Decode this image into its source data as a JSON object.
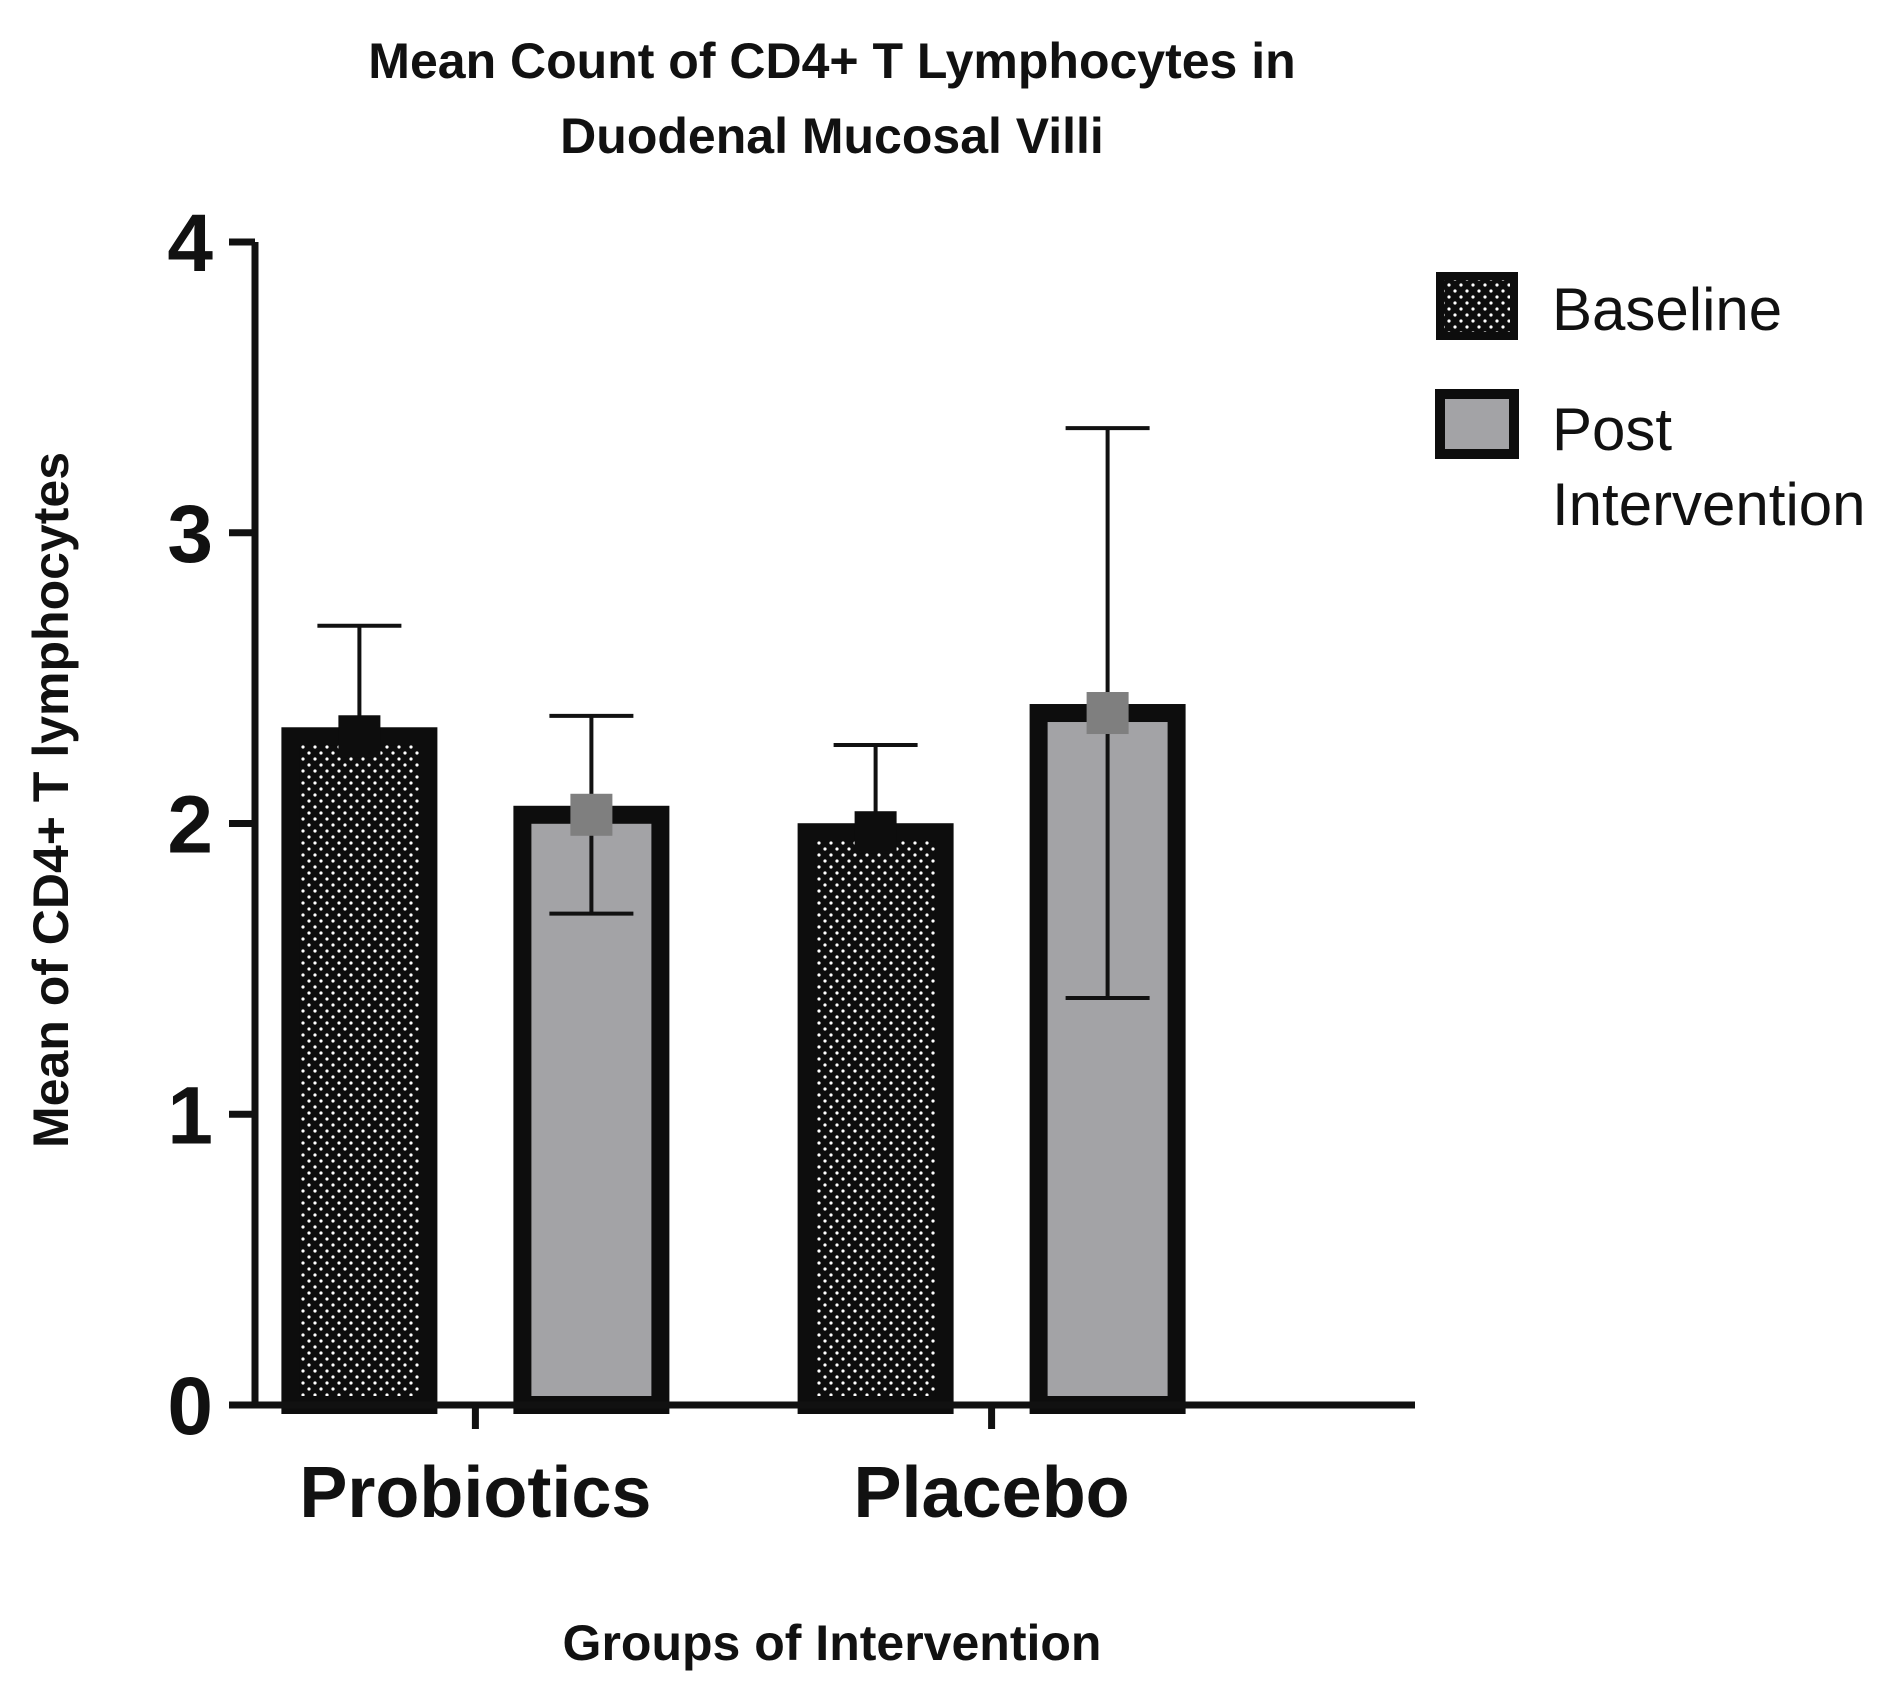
{
  "chart_data": {
    "type": "bar",
    "title": [
      "Mean Count of CD4+ T Lymphocytes in",
      "Duodenal Mucosal Villi"
    ],
    "xlabel": "Groups of Intervention",
    "ylabel": "Mean of CD4+ T lymphocytes",
    "categories": [
      "Probiotics",
      "Placebo"
    ],
    "ylim": [
      0,
      4
    ],
    "yticks": [
      "0",
      "1",
      "2",
      "3",
      "4"
    ],
    "series": [
      {
        "name": "Baseline",
        "values": [
          2.3,
          1.97
        ],
        "error": [
          0.38,
          0.3
        ],
        "fill": "#0d0d0d",
        "pattern": "dots"
      },
      {
        "name": "Post Intervention",
        "legend_lines": [
          "Post",
          "Intervention"
        ],
        "values": [
          2.03,
          2.38
        ],
        "error": [
          0.34,
          0.98
        ],
        "fill": "#a3a3a6",
        "pattern": "none"
      }
    ],
    "legend_position": "top-right",
    "grid": false
  }
}
